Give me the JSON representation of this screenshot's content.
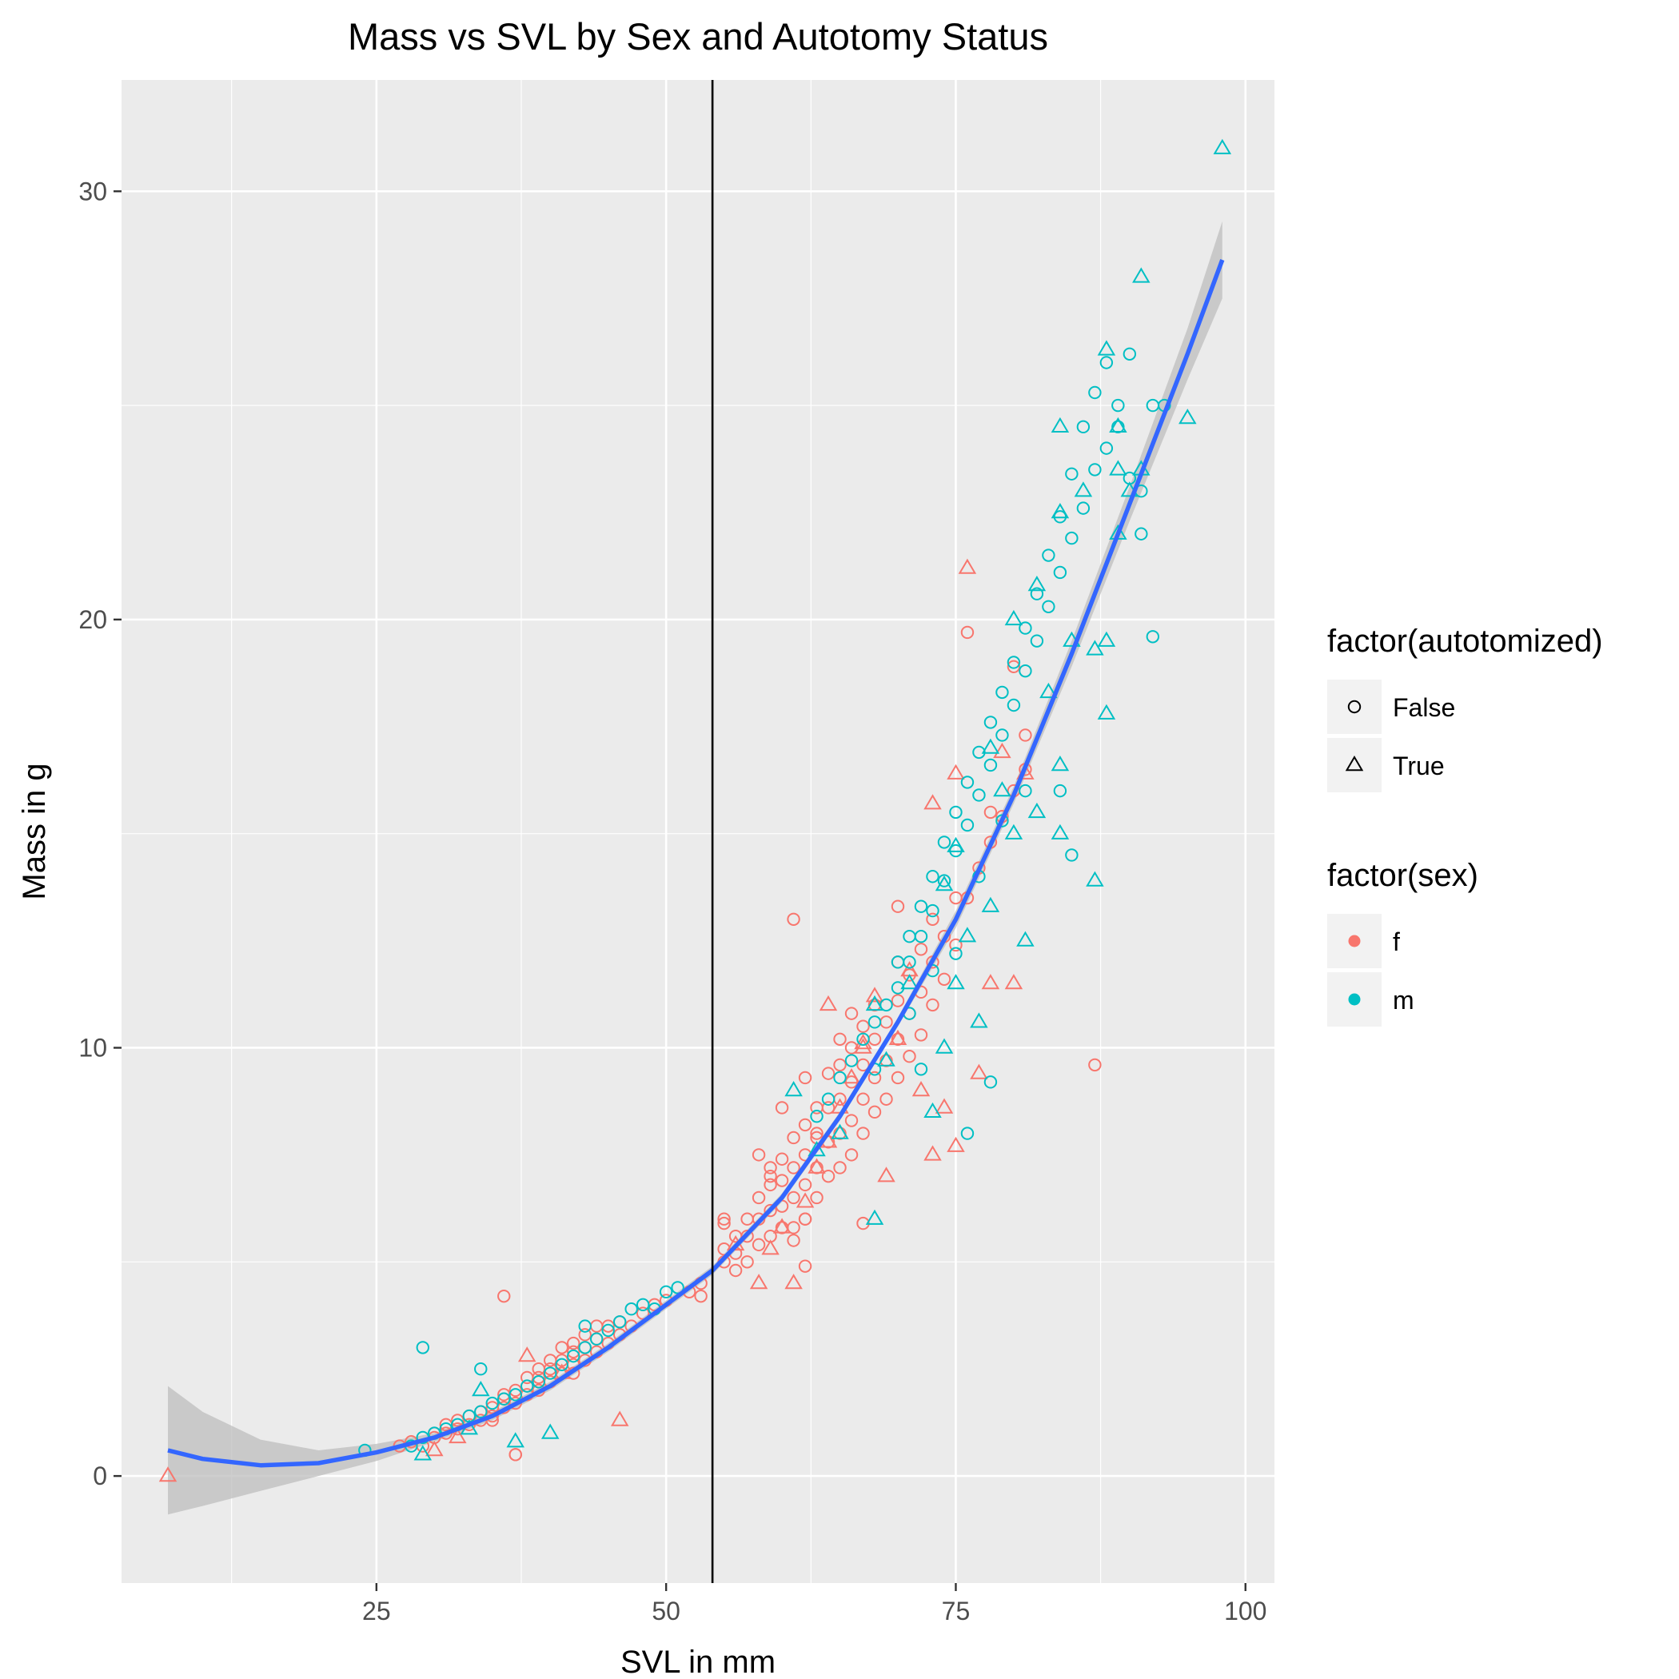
{
  "chart_data": {
    "type": "scatter",
    "title": "Mass vs SVL by Sex and Autotomy Status",
    "xlabel": "SVL in mm",
    "ylabel": "Mass in g",
    "xlim": [
      3,
      102.5
    ],
    "ylim": [
      -2.5,
      32.6
    ],
    "x_ticks": [
      25,
      50,
      75,
      100
    ],
    "y_ticks": [
      0,
      10,
      20,
      30
    ],
    "grid": true,
    "background": "#ebebeb",
    "vline_x": 54,
    "colors": {
      "f": "#f8766d",
      "m": "#00bfc4",
      "smooth": "#3366ff",
      "ribbon": "#bdbdbd",
      "vline": "#000000"
    },
    "legends": [
      {
        "title": "factor(autotomized)",
        "type": "shape",
        "items": [
          {
            "label": "False",
            "shape": "circle"
          },
          {
            "label": "True",
            "shape": "triangle"
          }
        ]
      },
      {
        "title": "factor(sex)",
        "type": "color",
        "items": [
          {
            "label": "f",
            "color": "#f8766d"
          },
          {
            "label": "m",
            "color": "#00bfc4"
          }
        ]
      }
    ],
    "legend_position": "right",
    "smooth": {
      "x": [
        7,
        10,
        15,
        20,
        25,
        30,
        35,
        40,
        45,
        50,
        54,
        60,
        65,
        70,
        75,
        80,
        85,
        90,
        95,
        98
      ],
      "y": [
        0.6,
        0.4,
        0.25,
        0.3,
        0.55,
        0.9,
        1.4,
        2.1,
        3.0,
        4.0,
        4.8,
        6.5,
        8.4,
        10.6,
        13.0,
        15.9,
        19.2,
        22.7,
        26.2,
        28.4
      ],
      "lo": [
        -0.9,
        -0.7,
        -0.35,
        0.0,
        0.35,
        0.8,
        1.3,
        2.0,
        2.9,
        3.9,
        4.7,
        6.4,
        8.3,
        10.5,
        12.8,
        15.7,
        18.9,
        22.3,
        25.6,
        27.5
      ],
      "hi": [
        2.1,
        1.5,
        0.85,
        0.6,
        0.75,
        1.0,
        1.5,
        2.2,
        3.1,
        4.1,
        4.9,
        6.6,
        8.5,
        10.7,
        13.2,
        16.1,
        19.5,
        23.1,
        26.8,
        29.3
      ]
    },
    "series": [
      {
        "sex": "f",
        "autotomized": "False",
        "x": [
          27,
          28,
          29,
          30,
          30,
          31,
          31,
          32,
          32,
          33,
          33,
          34,
          34,
          35,
          35,
          35,
          36,
          36,
          36,
          37,
          37,
          37,
          38,
          38,
          38,
          39,
          39,
          39,
          40,
          40,
          40,
          41,
          41,
          41,
          42,
          42,
          42,
          43,
          43,
          43,
          44,
          44,
          44,
          45,
          45,
          46,
          46,
          47,
          48,
          49,
          50,
          52,
          53,
          53,
          55,
          55,
          55,
          56,
          56,
          56,
          57,
          57,
          57,
          58,
          58,
          58,
          58,
          59,
          59,
          59,
          59,
          60,
          60,
          60,
          60,
          60,
          61,
          61,
          61,
          61,
          61,
          62,
          62,
          62,
          62,
          62,
          63,
          63,
          63,
          63,
          64,
          64,
          64,
          64,
          65,
          65,
          65,
          65,
          65,
          66,
          66,
          66,
          66,
          66,
          67,
          67,
          67,
          67,
          68,
          68,
          68,
          68,
          69,
          69,
          69,
          70,
          70,
          70,
          70,
          71,
          71,
          71,
          72,
          72,
          72,
          73,
          73,
          73,
          74,
          74,
          75,
          75,
          76,
          77,
          78,
          78,
          80,
          80,
          81,
          81,
          61,
          62,
          55,
          59,
          63,
          76,
          87,
          36,
          37,
          39,
          42,
          60,
          62,
          67,
          79,
          70
        ],
        "y": [
          0.7,
          0.8,
          0.7,
          0.9,
          1.0,
          1.0,
          1.2,
          1.1,
          1.3,
          1.2,
          1.4,
          1.3,
          1.5,
          1.4,
          1.6,
          1.3,
          1.6,
          1.8,
          4.2,
          1.7,
          2.0,
          0.5,
          1.9,
          2.1,
          2.3,
          2.0,
          2.3,
          2.5,
          2.2,
          2.5,
          2.7,
          2.4,
          2.7,
          3.0,
          2.6,
          2.9,
          3.1,
          2.7,
          3.0,
          3.3,
          2.9,
          3.2,
          3.5,
          3.1,
          3.5,
          3.3,
          3.6,
          3.5,
          3.8,
          4.0,
          4.1,
          4.3,
          4.5,
          4.2,
          5.0,
          5.3,
          5.9,
          4.8,
          5.2,
          5.6,
          5.0,
          5.6,
          6.0,
          5.4,
          6.0,
          6.5,
          7.5,
          5.6,
          6.2,
          6.8,
          7.2,
          5.8,
          6.3,
          6.9,
          7.4,
          8.6,
          5.8,
          6.5,
          7.2,
          7.9,
          5.5,
          6.0,
          6.8,
          7.5,
          8.2,
          4.9,
          6.5,
          7.2,
          7.9,
          8.6,
          7.0,
          7.8,
          8.6,
          9.4,
          7.2,
          8.0,
          8.8,
          9.6,
          10.2,
          7.5,
          8.3,
          9.2,
          10.0,
          10.8,
          8.0,
          8.8,
          9.6,
          10.5,
          8.5,
          9.3,
          10.2,
          11.0,
          8.8,
          9.7,
          10.6,
          9.3,
          10.2,
          11.1,
          12.0,
          9.8,
          10.8,
          11.7,
          10.3,
          11.3,
          12.3,
          11.0,
          12.0,
          13.0,
          11.6,
          12.6,
          12.4,
          13.5,
          13.5,
          14.2,
          14.8,
          15.5,
          16.0,
          18.9,
          16.5,
          17.3,
          13.0,
          9.3,
          6.0,
          7.0,
          8.0,
          19.7,
          9.6,
          1.9,
          0.5,
          2.2,
          2.4,
          5.8,
          6.0,
          5.9,
          15.4,
          13.3
        ]
      },
      {
        "sex": "f",
        "autotomized": "True",
        "x": [
          7,
          30,
          32,
          38,
          41,
          46,
          56,
          58,
          59,
          60,
          62,
          63,
          64,
          65,
          66,
          67,
          68,
          70,
          71,
          72,
          73,
          73,
          74,
          75,
          75,
          76,
          77,
          78,
          79,
          80,
          81,
          69,
          64,
          67,
          61
        ],
        "y": [
          0.0,
          0.6,
          0.9,
          2.8,
          2.4,
          1.3,
          5.4,
          4.5,
          5.3,
          5.8,
          6.4,
          7.2,
          7.8,
          8.6,
          9.3,
          10.1,
          11.2,
          10.2,
          11.8,
          9.0,
          7.5,
          15.7,
          8.6,
          7.7,
          16.4,
          21.2,
          9.4,
          11.5,
          16.9,
          11.5,
          16.4,
          7.0,
          11.0,
          10.0,
          4.5
        ]
      },
      {
        "sex": "m",
        "autotomized": "False",
        "x": [
          24,
          28,
          29,
          30,
          31,
          32,
          33,
          34,
          34,
          35,
          36,
          37,
          38,
          39,
          40,
          41,
          42,
          43,
          43,
          44,
          45,
          46,
          47,
          48,
          49,
          50,
          51,
          63,
          64,
          65,
          66,
          67,
          68,
          69,
          70,
          70,
          71,
          71,
          72,
          72,
          73,
          73,
          74,
          74,
          75,
          75,
          76,
          76,
          77,
          77,
          78,
          78,
          79,
          79,
          80,
          80,
          81,
          81,
          82,
          82,
          83,
          83,
          84,
          84,
          85,
          85,
          86,
          86,
          87,
          87,
          88,
          88,
          89,
          89,
          90,
          90,
          91,
          91,
          92,
          92,
          93,
          72,
          76,
          78,
          84,
          85,
          68,
          71,
          73,
          75,
          77,
          79,
          81,
          29
        ],
        "y": [
          0.6,
          0.7,
          0.9,
          1.0,
          1.1,
          1.2,
          1.4,
          1.5,
          2.5,
          1.7,
          1.8,
          1.9,
          2.1,
          2.2,
          2.4,
          2.6,
          2.8,
          3.0,
          3.5,
          3.2,
          3.4,
          3.6,
          3.9,
          4.0,
          3.9,
          4.3,
          4.4,
          8.4,
          8.8,
          9.3,
          9.7,
          10.2,
          10.6,
          11.0,
          11.4,
          12.0,
          12.0,
          12.6,
          12.6,
          13.3,
          13.2,
          14.0,
          13.9,
          14.8,
          14.6,
          15.5,
          15.2,
          16.2,
          15.9,
          16.9,
          16.6,
          17.6,
          17.3,
          18.3,
          18.0,
          19.0,
          18.8,
          19.8,
          19.5,
          20.6,
          20.3,
          21.5,
          21.1,
          22.4,
          21.9,
          23.4,
          22.6,
          24.5,
          23.5,
          25.3,
          24.0,
          26.0,
          24.5,
          25.0,
          23.3,
          26.2,
          22.0,
          23.0,
          25.0,
          19.6,
          25.0,
          9.5,
          8.0,
          9.2,
          16.0,
          14.5,
          9.5,
          10.8,
          11.8,
          12.2,
          14.0,
          15.3,
          16.0,
          3.0
        ]
      },
      {
        "sex": "m",
        "autotomized": "True",
        "x": [
          29,
          33,
          34,
          37,
          40,
          61,
          63,
          65,
          68,
          68,
          69,
          71,
          73,
          74,
          75,
          76,
          77,
          78,
          79,
          80,
          81,
          82,
          83,
          84,
          84,
          85,
          86,
          87,
          88,
          88,
          89,
          89,
          90,
          91,
          91,
          95,
          98,
          80,
          82,
          84,
          89,
          78,
          84,
          87,
          88,
          75,
          74
        ],
        "y": [
          0.5,
          1.1,
          2.0,
          0.8,
          1.0,
          9.0,
          7.6,
          8.0,
          6.0,
          11.0,
          9.7,
          11.5,
          8.5,
          10.0,
          11.5,
          12.6,
          10.6,
          13.3,
          16.0,
          15.0,
          12.5,
          15.5,
          18.3,
          15.0,
          16.6,
          19.5,
          23.0,
          13.9,
          17.8,
          19.5,
          22.0,
          23.5,
          23.0,
          28.0,
          23.5,
          24.7,
          31.0,
          20.0,
          20.8,
          22.5,
          24.5,
          17.0,
          24.5,
          19.3,
          26.3,
          14.7,
          13.8
        ]
      }
    ]
  }
}
